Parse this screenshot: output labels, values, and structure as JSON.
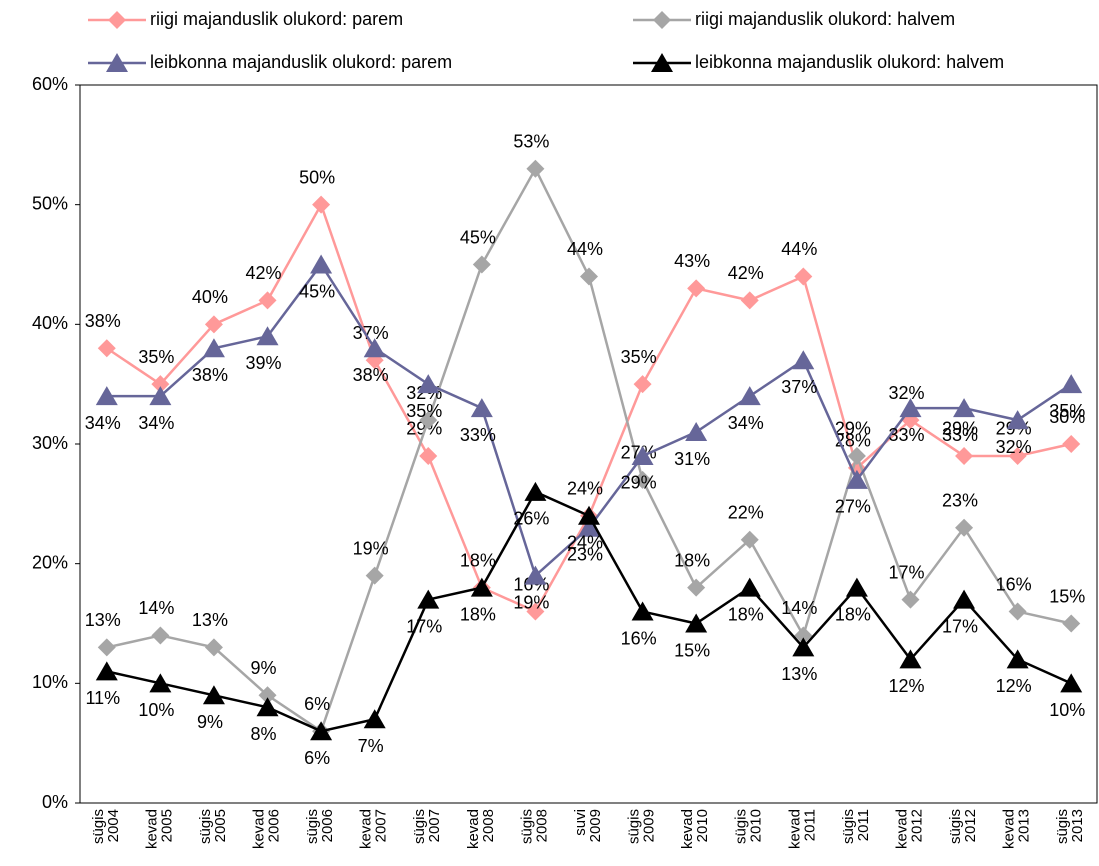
{
  "chart_data": {
    "type": "line",
    "categories": [
      [
        "sügis",
        "2004"
      ],
      [
        "kevad",
        "2005"
      ],
      [
        "sügis",
        "2005"
      ],
      [
        "kevad",
        "2006"
      ],
      [
        "sügis",
        "2006"
      ],
      [
        "kevad",
        "2007"
      ],
      [
        "sügis",
        "2007"
      ],
      [
        "kevad",
        "2008"
      ],
      [
        "sügis",
        "2008"
      ],
      [
        "suvi",
        "2009"
      ],
      [
        "sügis",
        "2009"
      ],
      [
        "kevad",
        "2010"
      ],
      [
        "sügis",
        "2010"
      ],
      [
        "kevad",
        "2011"
      ],
      [
        "sügis",
        "2011"
      ],
      [
        "kevad",
        "2012"
      ],
      [
        "sügis",
        "2012"
      ],
      [
        "kevad",
        "2013"
      ],
      [
        "sügis",
        "2013"
      ]
    ],
    "ylim": [
      0,
      60
    ],
    "yticks": [
      {
        "value": 0,
        "label": "0%"
      },
      {
        "value": 10,
        "label": "10%"
      },
      {
        "value": 20,
        "label": "20%"
      },
      {
        "value": 30,
        "label": "30%"
      },
      {
        "value": 40,
        "label": "40%"
      },
      {
        "value": 50,
        "label": "50%"
      },
      {
        "value": 60,
        "label": "60%"
      }
    ],
    "grid": false,
    "series": [
      {
        "name": "riigi majanduslik olukord: parem",
        "color": "#ff9999",
        "marker": "diamond",
        "values": [
          38,
          35,
          40,
          42,
          50,
          37,
          29,
          18,
          16,
          24,
          35,
          43,
          42,
          44,
          28,
          32,
          29,
          29,
          30
        ],
        "value_labels": [
          "38%",
          "35%",
          "40%",
          "42%",
          "50%",
          "37%",
          "29%",
          "18%",
          "16%",
          "24%",
          "35%",
          "43%",
          "42%",
          "44%",
          "28%",
          "32%",
          "29%",
          "29%",
          "30%"
        ]
      },
      {
        "name": "riigi majanduslik olukord: halvem",
        "color": "#a6a6a6",
        "marker": "diamond",
        "values": [
          13,
          14,
          13,
          9,
          6,
          19,
          32,
          45,
          53,
          44,
          27,
          18,
          22,
          14,
          29,
          17,
          23,
          16,
          15
        ],
        "value_labels": [
          "13%",
          "14%",
          "13%",
          "9%",
          "6%",
          "19%",
          "32%",
          "45%",
          "53%",
          "44%",
          "27%",
          "18%",
          "22%",
          "14%",
          "29%",
          "17%",
          "23%",
          "16%",
          "15%"
        ]
      },
      {
        "name": "leibkonna majanduslik olukord: parem",
        "color": "#666699",
        "marker": "triangle",
        "values": [
          34,
          34,
          38,
          39,
          45,
          38,
          35,
          33,
          19,
          23,
          29,
          31,
          34,
          37,
          27,
          33,
          33,
          32,
          35
        ],
        "value_labels": [
          "34%",
          "34%",
          "38%",
          "39%",
          "45%",
          "38%",
          "35%",
          "33%",
          "19%",
          "23%",
          "29%",
          "31%",
          "34%",
          "37%",
          "27%",
          "33%",
          "33%",
          "32%",
          "35%"
        ]
      },
      {
        "name": "leibkonna majanduslik olukord: halvem",
        "color": "#000000",
        "marker": "triangle",
        "values": [
          11,
          10,
          9,
          8,
          6,
          7,
          17,
          18,
          26,
          24,
          16,
          15,
          18,
          13,
          18,
          12,
          17,
          12,
          10
        ],
        "value_labels": [
          "11%",
          "10%",
          "9%",
          "8%",
          "6%",
          "7%",
          "17%",
          "18%",
          "26%",
          "24%",
          "16%",
          "15%",
          "18%",
          "13%",
          "18%",
          "12%",
          "17%",
          "12%",
          "10%"
        ]
      }
    ]
  }
}
